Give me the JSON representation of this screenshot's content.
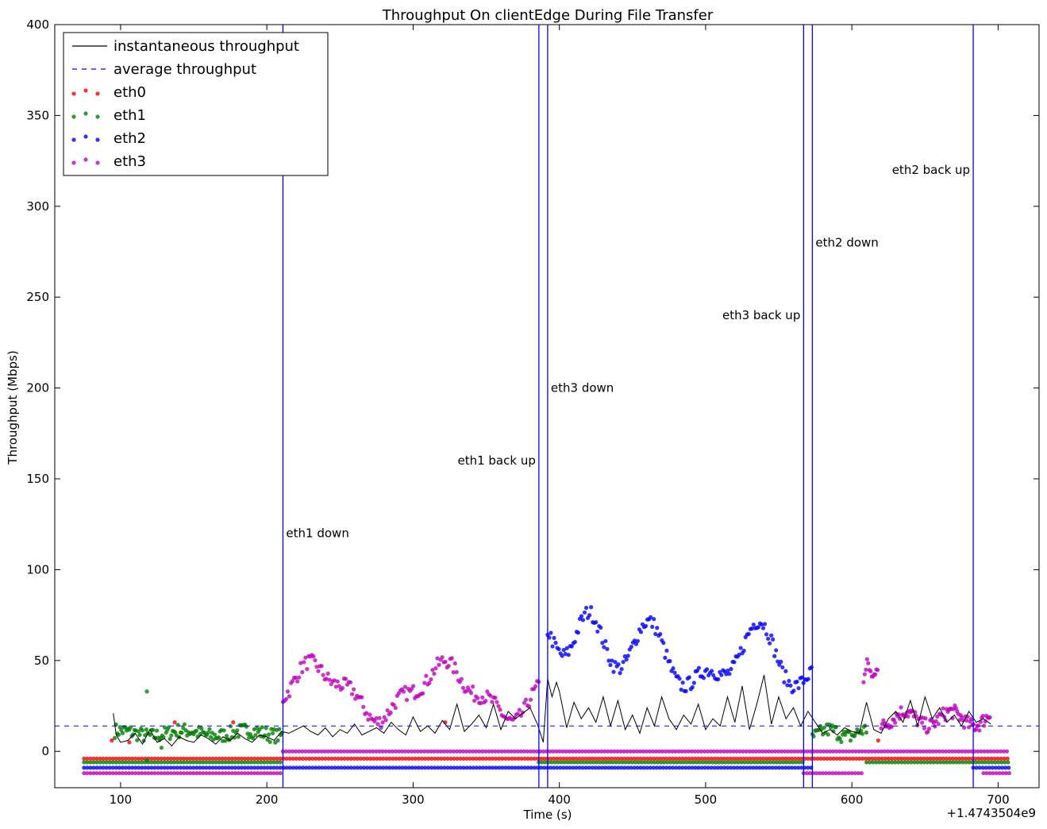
{
  "chart_data": {
    "type": "line",
    "title": "Throughput On clientEdge During File Transfer",
    "xlabel": "Time (s)",
    "ylabel": "Throughput (Mbps)",
    "x_offset_label": "+1.4743504e9",
    "xlim": [
      55,
      728
    ],
    "ylim": [
      -20,
      400
    ],
    "x_ticks": [
      100,
      200,
      300,
      400,
      500,
      600,
      700
    ],
    "y_ticks": [
      0,
      50,
      100,
      150,
      200,
      250,
      300,
      350,
      400
    ],
    "grid": false,
    "legend_position": "top-left",
    "legend": [
      {
        "label": "instantaneous throughput",
        "style": "line",
        "color": "#000000"
      },
      {
        "label": "average throughput",
        "style": "dashed",
        "color": "#0000ff"
      },
      {
        "label": "eth0",
        "style": "dots",
        "color": "#ff0000"
      },
      {
        "label": "eth1",
        "style": "dots",
        "color": "#008000"
      },
      {
        "label": "eth2",
        "style": "dots",
        "color": "#0000ff"
      },
      {
        "label": "eth3",
        "style": "dots",
        "color": "#bf00bf"
      }
    ],
    "average_throughput": 14,
    "events": [
      {
        "x": 211,
        "label": "eth1 down",
        "label_y": 120,
        "side": "right"
      },
      {
        "x": 386,
        "label": "eth1 back up",
        "label_y": 160,
        "side": "left"
      },
      {
        "x": 392,
        "label": "eth3 down",
        "label_y": 200,
        "side": "right"
      },
      {
        "x": 567,
        "label": "eth3 back up",
        "label_y": 240,
        "side": "left"
      },
      {
        "x": 573,
        "label": "eth2 down",
        "label_y": 280,
        "side": "right"
      },
      {
        "x": 683,
        "label": "eth2 back up",
        "label_y": 320,
        "side": "left"
      }
    ],
    "instantaneous": {
      "x": [
        95,
        97,
        100,
        105,
        110,
        115,
        120,
        125,
        130,
        135,
        140,
        145,
        150,
        155,
        160,
        165,
        170,
        175,
        180,
        185,
        190,
        195,
        200,
        205,
        210,
        215,
        220,
        225,
        230,
        235,
        240,
        245,
        250,
        255,
        260,
        265,
        270,
        275,
        280,
        285,
        290,
        295,
        300,
        305,
        310,
        315,
        320,
        325,
        330,
        335,
        340,
        345,
        350,
        355,
        360,
        365,
        370,
        375,
        380,
        385,
        389,
        392,
        395,
        398,
        400,
        405,
        410,
        415,
        420,
        425,
        430,
        435,
        440,
        445,
        450,
        455,
        460,
        465,
        470,
        475,
        480,
        485,
        490,
        495,
        500,
        505,
        510,
        515,
        520,
        525,
        530,
        535,
        540,
        545,
        550,
        555,
        560,
        565,
        570,
        575,
        580,
        585,
        590,
        595,
        600,
        605,
        610,
        615,
        620,
        625,
        630,
        635,
        640,
        645,
        650,
        655,
        660,
        665,
        670,
        675,
        680,
        685,
        690,
        695
      ],
      "y": [
        21,
        9,
        5,
        6,
        10,
        4,
        12,
        5,
        7,
        3,
        8,
        6,
        5,
        9,
        7,
        4,
        8,
        6,
        10,
        7,
        5,
        9,
        8,
        6,
        11,
        10,
        12,
        14,
        11,
        9,
        13,
        8,
        12,
        10,
        15,
        9,
        11,
        13,
        10,
        16,
        12,
        9,
        19,
        11,
        14,
        10,
        17,
        12,
        26,
        11,
        15,
        20,
        13,
        26,
        12,
        22,
        18,
        21,
        24,
        15,
        5,
        40,
        30,
        38,
        33,
        13,
        27,
        18,
        24,
        16,
        30,
        14,
        28,
        12,
        20,
        10,
        24,
        14,
        30,
        18,
        12,
        20,
        15,
        26,
        12,
        18,
        14,
        30,
        16,
        36,
        12,
        26,
        42,
        15,
        30,
        18,
        24,
        14,
        22,
        16,
        10,
        12,
        9,
        13,
        11,
        10,
        27,
        12,
        10,
        18,
        22,
        16,
        28,
        14,
        30,
        18,
        24,
        16,
        20,
        14,
        22,
        16,
        18,
        15
      ]
    },
    "series": [
      {
        "name": "eth0",
        "color": "#ff0000"
      },
      {
        "name": "eth1",
        "color": "#008000"
      },
      {
        "name": "eth2",
        "color": "#0000ff"
      },
      {
        "name": "eth3",
        "color": "#bf00bf"
      }
    ]
  }
}
